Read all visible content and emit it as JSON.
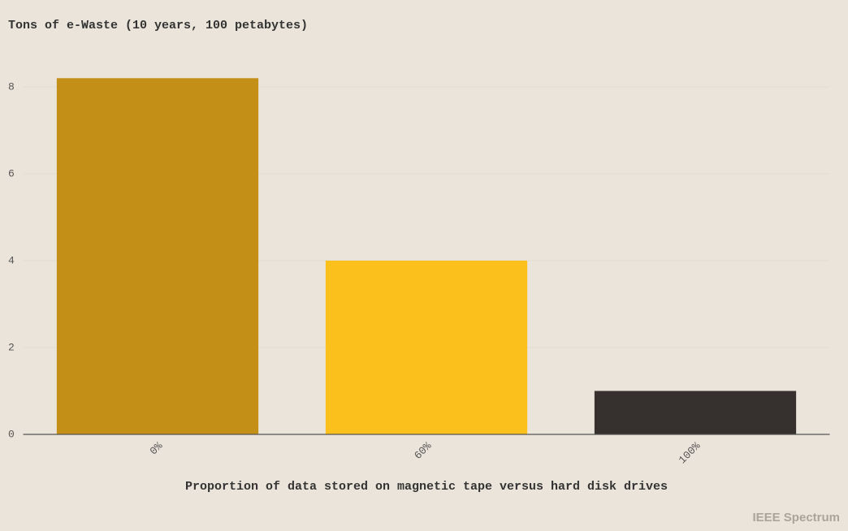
{
  "chart_data": {
    "type": "bar",
    "title": "Tons of e-Waste (10 years, 100 petabytes)",
    "x_label": "Proportion of data stored on magnetic tape versus hard disk drives",
    "categories": [
      "0%",
      "60%",
      "100%"
    ],
    "values": [
      8.2,
      4.0,
      1.0
    ],
    "colors": [
      "#c48f16",
      "#fbc01c",
      "#36312e"
    ],
    "ylim": [
      0,
      8.5
    ],
    "yticks": [
      0,
      2,
      4,
      6,
      8
    ],
    "grid": true,
    "source": "IEEE Spectrum"
  }
}
